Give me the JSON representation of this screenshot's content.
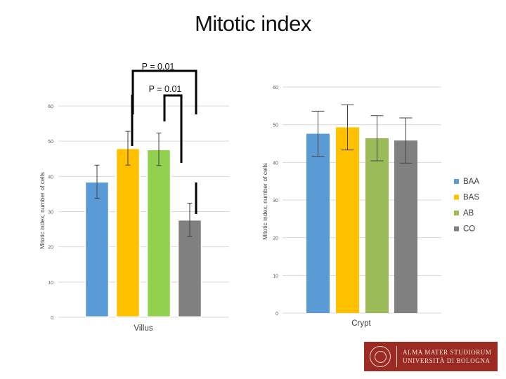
{
  "slide": {
    "title": "Mitotic index"
  },
  "colors": {
    "BAA": "#5b9bd5",
    "BAS": "#ffc000",
    "AB_villus": "#92d050",
    "AB_crypt": "#9bbb59",
    "CO": "#808080"
  },
  "chart_data": [
    {
      "type": "bar",
      "categories": [
        "Villus"
      ],
      "series": [
        {
          "name": "BAA",
          "values": [
            38.5
          ],
          "error": [
            4.7
          ]
        },
        {
          "name": "BAS",
          "values": [
            48.0
          ],
          "error": [
            4.8
          ]
        },
        {
          "name": "AB",
          "values": [
            47.7
          ],
          "error": [
            4.6
          ]
        },
        {
          "name": "CO",
          "values": [
            27.7
          ],
          "error": [
            4.7
          ]
        }
      ],
      "ylabel": "Mitotic index, number of cells",
      "ylim": [
        0,
        60
      ],
      "yticks": [
        "0",
        "10",
        "20",
        "30",
        "40",
        "50",
        "60"
      ],
      "grid": true,
      "annotations": [
        "P = 0.01",
        "P = 0.01"
      ]
    },
    {
      "type": "bar",
      "categories": [
        "Crypt"
      ],
      "series": [
        {
          "name": "BAA",
          "values": [
            47.6
          ],
          "error": [
            6.0
          ]
        },
        {
          "name": "BAS",
          "values": [
            49.3
          ],
          "error": [
            6.0
          ]
        },
        {
          "name": "AB",
          "values": [
            46.4
          ],
          "error": [
            6.0
          ]
        },
        {
          "name": "CO",
          "values": [
            45.8
          ],
          "error": [
            6.0
          ]
        }
      ],
      "ylabel": "Mitotic index, number of cells",
      "ylim": [
        0,
        60
      ],
      "yticks": [
        "0",
        "10",
        "20",
        "30",
        "40",
        "50",
        "60"
      ],
      "grid": true,
      "legend": {
        "position": "right",
        "entries": [
          "BAA",
          "BAS",
          "AB",
          "CO"
        ]
      }
    }
  ],
  "logo": {
    "line1": "ALMA MATER STUDIORUM",
    "line2": "UNIVERSITÀ DI BOLOGNA"
  }
}
